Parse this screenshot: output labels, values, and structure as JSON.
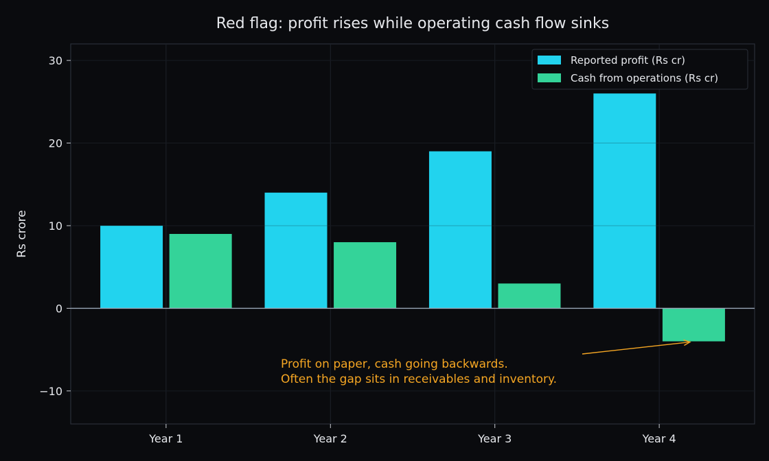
{
  "chart_data": {
    "type": "bar",
    "title": "Red flag: profit rises while operating cash flow sinks",
    "xlabel": "",
    "ylabel": "Rs crore",
    "categories": [
      "Year 1",
      "Year 2",
      "Year 3",
      "Year 4"
    ],
    "series": [
      {
        "name": "Reported profit (Rs cr)",
        "values": [
          10,
          14,
          19,
          26
        ],
        "color": "#22d3ee"
      },
      {
        "name": "Cash from operations (Rs cr)",
        "values": [
          9,
          8,
          3,
          -4
        ],
        "color": "#34d399"
      }
    ],
    "ylim": [
      -14,
      32
    ],
    "yticks": [
      -10,
      0,
      10,
      20,
      30
    ],
    "grid": true,
    "legend": "top-right",
    "annotation": {
      "lines": [
        "Profit on paper, cash going backwards.",
        "Often the gap sits in receivables and inventory."
      ],
      "color": "#f5a623",
      "points_to": {
        "category": "Year 4",
        "value": -4
      }
    }
  }
}
